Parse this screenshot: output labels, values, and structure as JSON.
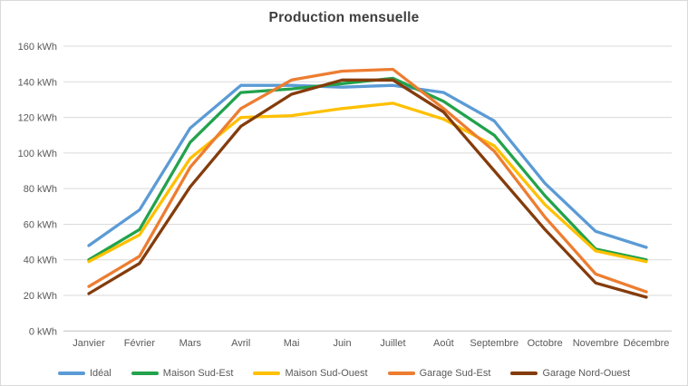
{
  "chart_data": {
    "type": "line",
    "title": "Production mensuelle",
    "xlabel": "",
    "ylabel": "",
    "unit": "kWh",
    "grid": true,
    "legend_position": "bottom",
    "categories": [
      "Janvier",
      "Février",
      "Mars",
      "Avril",
      "Mai",
      "Juin",
      "Juillet",
      "Août",
      "Septembre",
      "Octobre",
      "Novembre",
      "Décembre"
    ],
    "y_axis": {
      "min": 0,
      "max": 160,
      "step": 20,
      "tick_suffix": " kWh",
      "tick_labels": [
        "0 kWh",
        "20 kWh",
        "40 kWh",
        "60 kWh",
        "80 kWh",
        "100 kWh",
        "120 kWh",
        "140 kWh",
        "160 kWh"
      ]
    },
    "series": [
      {
        "name": "Idéal",
        "color": "#5B9BD5",
        "values": [
          48,
          68,
          114,
          138,
          138,
          137,
          138,
          134,
          118,
          83,
          56,
          47
        ]
      },
      {
        "name": "Maison Sud-Est",
        "color": "#22A24C",
        "values": [
          40,
          57,
          106,
          134,
          136,
          139,
          142,
          129,
          110,
          76,
          46,
          40
        ]
      },
      {
        "name": "Maison Sud-Ouest",
        "color": "#FFC000",
        "values": [
          39,
          54,
          97,
          120,
          121,
          125,
          128,
          119,
          104,
          71,
          45,
          39
        ]
      },
      {
        "name": "Garage Sud-Est",
        "color": "#ED7D31",
        "values": [
          25,
          42,
          92,
          125,
          141,
          146,
          147,
          125,
          101,
          64,
          32,
          22
        ]
      },
      {
        "name": "Garage Nord-Ouest",
        "color": "#843C0C",
        "values": [
          21,
          38,
          81,
          115,
          133,
          141,
          141,
          123,
          90,
          57,
          27,
          19
        ]
      }
    ]
  },
  "colors": {
    "grid": "#D9D9D9",
    "axis_line": "#BFBFBF",
    "axis_text": "#595959",
    "title_text": "#404040",
    "background": "#FFFFFF"
  }
}
